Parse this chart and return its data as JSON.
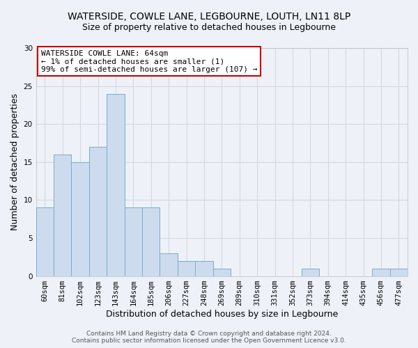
{
  "title": "WATERSIDE, COWLE LANE, LEGBOURNE, LOUTH, LN11 8LP",
  "subtitle": "Size of property relative to detached houses in Legbourne",
  "xlabel": "Distribution of detached houses by size in Legbourne",
  "ylabel": "Number of detached properties",
  "bar_labels": [
    "60sqm",
    "81sqm",
    "102sqm",
    "123sqm",
    "143sqm",
    "164sqm",
    "185sqm",
    "206sqm",
    "227sqm",
    "248sqm",
    "269sqm",
    "289sqm",
    "310sqm",
    "331sqm",
    "352sqm",
    "373sqm",
    "394sqm",
    "414sqm",
    "435sqm",
    "456sqm",
    "477sqm"
  ],
  "bar_values": [
    9,
    16,
    15,
    17,
    24,
    9,
    9,
    3,
    2,
    2,
    1,
    0,
    0,
    0,
    0,
    1,
    0,
    0,
    0,
    1,
    1
  ],
  "bar_color": "#ccdcee",
  "bar_edgecolor": "#7aabcc",
  "ylim": [
    0,
    30
  ],
  "yticks": [
    0,
    5,
    10,
    15,
    20,
    25,
    30
  ],
  "annotation_box_text": "WATERSIDE COWLE LANE: 64sqm\n← 1% of detached houses are smaller (1)\n99% of semi-detached houses are larger (107) →",
  "annotation_box_color": "#ffffff",
  "annotation_box_edgecolor": "#cc0000",
  "footer_line1": "Contains HM Land Registry data © Crown copyright and database right 2024.",
  "footer_line2": "Contains public sector information licensed under the Open Government Licence v3.0.",
  "background_color": "#eef2f8",
  "plot_bg_color": "#eef2f8",
  "grid_color": "#d0d8e4",
  "title_fontsize": 10,
  "subtitle_fontsize": 9,
  "axis_label_fontsize": 9,
  "tick_fontsize": 7.5,
  "annotation_fontsize": 8,
  "footer_fontsize": 6.5
}
